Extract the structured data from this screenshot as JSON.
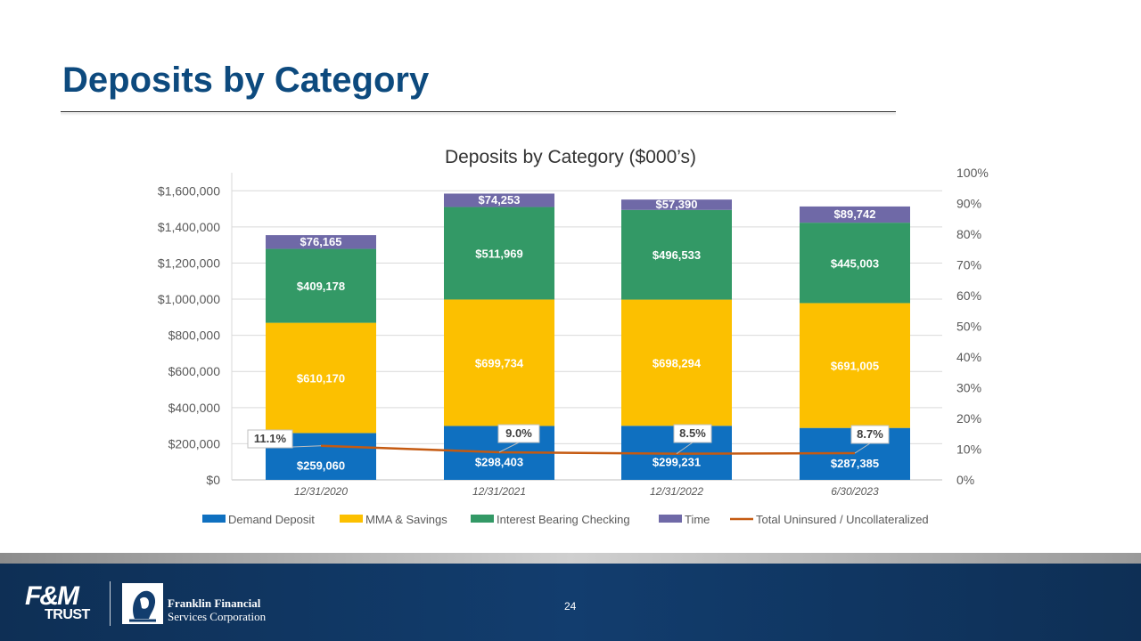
{
  "slide": {
    "title": "Deposits by Category",
    "page_number": "24"
  },
  "footer": {
    "logo_fm_line1": "F&M",
    "logo_fm_line2": "TRUST",
    "logo_ffsc_line1": "Franklin Financial",
    "logo_ffsc_line2": "Services Corporation"
  },
  "colors": {
    "title": "#0d4a7e",
    "demand": "#0f70c0",
    "mma": "#fcc000",
    "ibc": "#339966",
    "time": "#6f69a7",
    "uninsured": "#c55a11",
    "footer": "#123d6e"
  },
  "chart_data": {
    "type": "bar",
    "stacked": true,
    "title": "Deposits by Category ($000’s)",
    "categories": [
      "12/31/2020",
      "12/31/2021",
      "12/31/2022",
      "6/30/2023"
    ],
    "series": [
      {
        "name": "Demand Deposit",
        "values": [
          259060,
          298403,
          299231,
          287385
        ],
        "labels": [
          "$259,060",
          "$298,403",
          "$299,231",
          "$287,385"
        ]
      },
      {
        "name": "MMA & Savings",
        "values": [
          610170,
          699734,
          698294,
          691005
        ],
        "labels": [
          "$610,170",
          "$699,734",
          "$698,294",
          "$691,005"
        ]
      },
      {
        "name": "Interest Bearing Checking",
        "values": [
          409178,
          511969,
          496533,
          445003
        ],
        "labels": [
          "$409,178",
          "$511,969",
          "$496,533",
          "$445,003"
        ]
      },
      {
        "name": "Time",
        "values": [
          76165,
          74253,
          57390,
          89742
        ],
        "labels": [
          "$76,165",
          "$74,253",
          "$57,390",
          "$89,742"
        ]
      }
    ],
    "line_series": {
      "name": "Total Uninsured / Uncollateralized",
      "axis": "secondary",
      "values": [
        11.1,
        9.0,
        8.5,
        8.7
      ],
      "labels": [
        "11.1%",
        "9.0%",
        "8.5%",
        "8.7%"
      ]
    },
    "y_axis": {
      "min": 0,
      "max": 1700000,
      "step": 200000,
      "tick_labels": [
        "$0",
        "$200,000",
        "$400,000",
        "$600,000",
        "$800,000",
        "$1,000,000",
        "$1,200,000",
        "$1,400,000",
        "$1,600,000"
      ]
    },
    "y2_axis": {
      "min": 0,
      "max": 100,
      "step": 10,
      "tick_labels": [
        "0%",
        "10%",
        "20%",
        "30%",
        "40%",
        "50%",
        "60%",
        "70%",
        "80%",
        "90%",
        "100%"
      ]
    },
    "grid": true,
    "legend_position": "bottom"
  }
}
